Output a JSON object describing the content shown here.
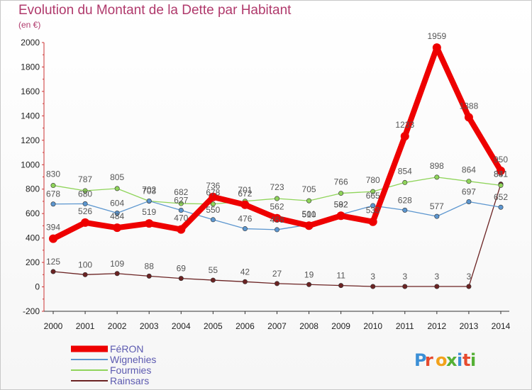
{
  "title": "Evolution du Montant de la Dette par Habitant",
  "unit": "(en €)",
  "logo": "Proxiti",
  "colors": {
    "feron": "#ee0000",
    "wignehies": "#5c96cf",
    "fourmies": "#8fd45a",
    "rainsars": "#6b2323"
  },
  "chart_data": {
    "type": "line",
    "title": "Evolution du Montant de la Dette par Habitant",
    "ylabel": "(en €)",
    "xlabel": "",
    "ylim": [
      -200,
      2000
    ],
    "yticks": [
      -200,
      0,
      200,
      400,
      600,
      800,
      1000,
      1200,
      1400,
      1600,
      1800,
      2000
    ],
    "x": [
      "2000",
      "2001",
      "2002",
      "2003",
      "2004",
      "2005",
      "2006",
      "2007",
      "2008",
      "2009",
      "2010",
      "2011",
      "2012",
      "2013",
      "2014"
    ],
    "grid": false,
    "legend": "bottom-left",
    "series": [
      {
        "name": "FéRON",
        "color": "#ee0000",
        "values": [
          394,
          526,
          484,
          519,
          470,
          736,
          672,
          562,
          501,
          582,
          533,
          1233,
          1959,
          1388,
          950
        ]
      },
      {
        "name": "Wignehies",
        "color": "#5c96cf",
        "values": [
          678,
          680,
          604,
          703,
          627,
          550,
          476,
          468,
          510,
          592,
          665,
          628,
          577,
          697,
          652
        ]
      },
      {
        "name": "Fourmies",
        "color": "#8fd45a",
        "values": [
          830,
          787,
          805,
          702,
          682,
          678,
          701,
          723,
          705,
          766,
          780,
          854,
          898,
          864,
          831
        ]
      },
      {
        "name": "Rainsars",
        "color": "#6b2323",
        "values": [
          125,
          100,
          109,
          88,
          69,
          55,
          42,
          27,
          19,
          11,
          3,
          3,
          3,
          3,
          841
        ]
      }
    ]
  }
}
